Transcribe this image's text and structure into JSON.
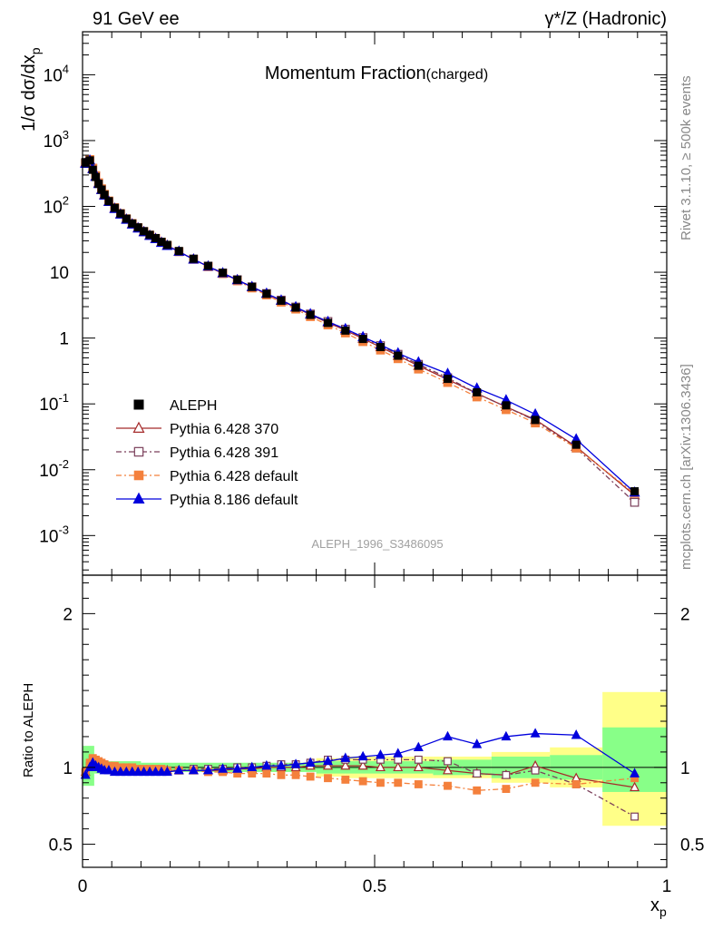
{
  "header": {
    "left": "91 GeV ee",
    "right": "γ*/Z (Hadronic)"
  },
  "side_text": {
    "rivet": "Rivet 3.1.10, ≥ 500k events",
    "mcplots": "mcplots.cern.ch [arXiv:1306.3436]"
  },
  "chart_data": {
    "type": "line",
    "title": "Momentum Fraction",
    "title_suffix": "(charged)",
    "analysis_tag": "ALEPH_1996_S3486095",
    "xlabel": "x",
    "xlabel_sub": "p",
    "ylabel": "1/σ dσ/dx",
    "ylabel_sub": "p",
    "ratio_ylabel": "Ratio to ALEPH",
    "xlim": [
      0,
      1
    ],
    "ylim": [
      0.00025,
      45000
    ],
    "yscale": "log",
    "ratio_ylim": [
      0.35,
      2.25
    ],
    "x_ticks": [
      "0",
      "0.5",
      "1"
    ],
    "y_tick_labels": [
      {
        "base": "10",
        "exp": "-3"
      },
      {
        "base": "10",
        "exp": "-2"
      },
      {
        "base": "10",
        "exp": "-1"
      },
      {
        "base": "1",
        "exp": ""
      },
      {
        "base": "10",
        "exp": ""
      },
      {
        "base": "10",
        "exp": "2"
      },
      {
        "base": "10",
        "exp": "3"
      },
      {
        "base": "10",
        "exp": "4"
      }
    ],
    "ratio_tick_labels": [
      "0.5",
      "1",
      "2"
    ],
    "x": [
      0.005,
      0.0125,
      0.0175,
      0.0225,
      0.0275,
      0.0325,
      0.0375,
      0.045,
      0.055,
      0.065,
      0.075,
      0.085,
      0.095,
      0.105,
      0.115,
      0.125,
      0.135,
      0.145,
      0.165,
      0.19,
      0.215,
      0.24,
      0.265,
      0.29,
      0.315,
      0.34,
      0.365,
      0.39,
      0.42,
      0.45,
      0.48,
      0.51,
      0.54,
      0.575,
      0.625,
      0.675,
      0.725,
      0.775,
      0.845,
      0.945
    ],
    "data_series": {
      "name": "ALEPH",
      "values": [
        470,
        500,
        360,
        280,
        220,
        180,
        150,
        120,
        95,
        78,
        65,
        55,
        48,
        42,
        37,
        33,
        29,
        26,
        21,
        16,
        12.5,
        9.8,
        7.7,
        6.0,
        4.7,
        3.7,
        2.9,
        2.25,
        1.7,
        1.3,
        0.97,
        0.73,
        0.54,
        0.38,
        0.24,
        0.15,
        0.095,
        0.057,
        0.024,
        0.0047
      ],
      "band_inner": [
        [
          0,
          0.02,
          0.88,
          1.14
        ],
        [
          0.02,
          0.1,
          0.96,
          1.04
        ],
        [
          0.1,
          0.4,
          0.97,
          1.03
        ],
        [
          0.4,
          0.6,
          0.96,
          1.04
        ],
        [
          0.6,
          0.7,
          0.95,
          1.05
        ],
        [
          0.7,
          0.8,
          0.93,
          1.07
        ],
        [
          0.8,
          0.89,
          0.92,
          1.08
        ],
        [
          0.89,
          1.0,
          0.84,
          1.26
        ]
      ],
      "band_outer": [
        [
          0.4,
          0.45,
          0.94,
          1.06
        ],
        [
          0.45,
          0.6,
          0.93,
          1.07
        ],
        [
          0.6,
          0.7,
          0.93,
          1.07
        ],
        [
          0.7,
          0.8,
          0.9,
          1.1
        ],
        [
          0.8,
          0.89,
          0.87,
          1.13
        ],
        [
          0.89,
          1.0,
          0.62,
          1.49
        ]
      ]
    },
    "series": [
      {
        "name": "Pythia 6.428 370",
        "color": "#a52a2a",
        "marker": "open-triangle",
        "linestyle": "solid",
        "ratio": [
          0.97,
          1.0,
          1.04,
          1.02,
          1.02,
          1.0,
          1.0,
          0.99,
          0.98,
          0.98,
          0.98,
          0.98,
          0.98,
          0.98,
          0.98,
          0.98,
          0.98,
          0.98,
          0.98,
          0.98,
          0.98,
          0.98,
          0.99,
          0.99,
          1.0,
          1.0,
          1.0,
          1.01,
          1.01,
          1.01,
          1.01,
          1.0,
          1.0,
          1.0,
          0.98,
          0.96,
          0.95,
          1.01,
          0.93,
          0.87
        ]
      },
      {
        "name": "Pythia 6.428 391",
        "color": "#7b3f5a",
        "marker": "open-square",
        "linestyle": "dashdot",
        "ratio": [
          0.96,
          1.01,
          1.05,
          1.03,
          1.02,
          1.01,
          1.0,
          0.99,
          0.98,
          0.98,
          0.98,
          0.98,
          0.98,
          0.98,
          0.98,
          0.98,
          0.98,
          0.98,
          0.98,
          0.99,
          0.99,
          0.99,
          1.0,
          1.0,
          1.01,
          1.02,
          1.02,
          1.03,
          1.05,
          1.05,
          1.05,
          1.05,
          1.05,
          1.05,
          1.04,
          0.96,
          0.95,
          0.98,
          0.89,
          0.68
        ]
      },
      {
        "name": "Pythia 6.428 default",
        "color": "#f4803c",
        "marker": "filled-square",
        "linestyle": "dashdot",
        "ratio": [
          0.97,
          1.03,
          1.06,
          1.05,
          1.04,
          1.03,
          1.02,
          1.01,
          1.01,
          1.0,
          1.0,
          1.0,
          0.99,
          0.99,
          0.99,
          0.99,
          0.99,
          0.98,
          0.98,
          0.98,
          0.97,
          0.97,
          0.96,
          0.96,
          0.96,
          0.95,
          0.95,
          0.94,
          0.93,
          0.92,
          0.91,
          0.9,
          0.9,
          0.89,
          0.88,
          0.85,
          0.86,
          0.9,
          0.89,
          0.93
        ]
      },
      {
        "name": "Pythia 8.186 default",
        "color": "#0000dd",
        "marker": "filled-triangle",
        "linestyle": "solid",
        "ratio": [
          0.95,
          1.0,
          1.03,
          1.01,
          1.0,
          0.99,
          0.98,
          0.98,
          0.97,
          0.97,
          0.97,
          0.97,
          0.97,
          0.97,
          0.97,
          0.97,
          0.97,
          0.97,
          0.98,
          0.98,
          0.98,
          0.99,
          0.99,
          1.0,
          1.01,
          1.01,
          1.02,
          1.03,
          1.04,
          1.06,
          1.07,
          1.08,
          1.09,
          1.13,
          1.2,
          1.15,
          1.2,
          1.22,
          1.21,
          0.96
        ]
      }
    ]
  }
}
